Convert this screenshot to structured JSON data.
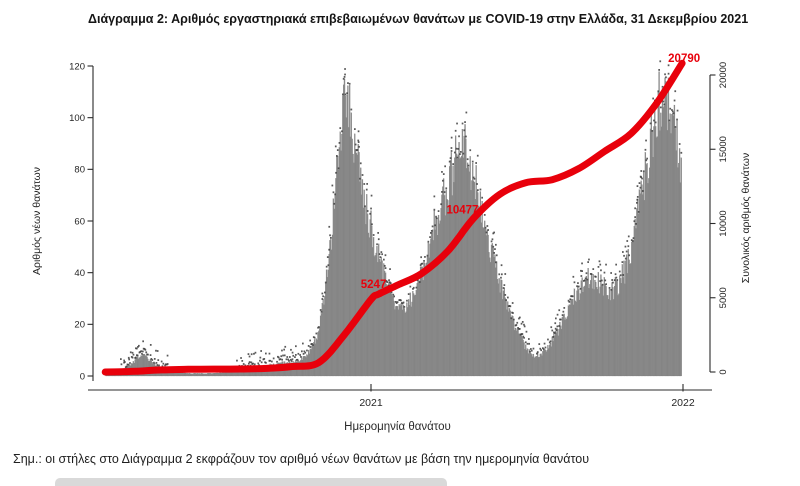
{
  "title": "Διάγραμμα 2: Αριθμός εργαστηριακά επιβεβαιωμένων θανάτων με COVID-19 στην Ελλάδα, 31 Δεκεμβρίου 2021",
  "note": "Σημ.: οι στήλες στο Διάγραμμα 2 εκφράζουν τον αριθμό νέων θανάτων με βάση την ημερομηνία θανάτου",
  "colors": {
    "bar": "#8c8c8c",
    "bar_edge": "#707070",
    "speck": "#3d3d3d",
    "line": "#e8000b",
    "axis": "#2b2b2b",
    "tick_text": "#262626",
    "annotation": "#e8000b"
  },
  "chart_data": {
    "type": "bar",
    "title": "Διάγραμμα 2: Αριθμός εργαστηριακά επιβεβαιωμένων θανάτων με COVID-19 στην Ελλάδα, 31 Δεκεμβρίου 2021",
    "xlabel": "Ημερομηνία θανάτου",
    "ylabel_left": "Αριθμός νέων θανάτων",
    "ylabel_right": "Συνολικός αριθμός θανάτων",
    "x_tick_labels": [
      "2021",
      "2022"
    ],
    "x_tick_dates": [
      "2021-01-01",
      "2022-01-01"
    ],
    "ylim_left": [
      0,
      120
    ],
    "yticks_left": [
      0,
      20,
      40,
      60,
      80,
      100,
      120
    ],
    "ylim_right": [
      0,
      20000
    ],
    "yticks_right": [
      0,
      5000,
      10000,
      15000,
      20000
    ],
    "grid": false,
    "series": [
      {
        "name": "Αριθμός νέων θανάτων",
        "type": "bar",
        "axis": "left",
        "envelope_points": [
          [
            "2020-02-26",
            0.4
          ],
          [
            "2020-03-05",
            0.8
          ],
          [
            "2020-03-12",
            1.5
          ],
          [
            "2020-03-20",
            3
          ],
          [
            "2020-03-28",
            5
          ],
          [
            "2020-04-04",
            7
          ],
          [
            "2020-04-11",
            8
          ],
          [
            "2020-04-18",
            6
          ],
          [
            "2020-04-25",
            4
          ],
          [
            "2020-05-02",
            3
          ],
          [
            "2020-05-10",
            2
          ],
          [
            "2020-05-20",
            1.5
          ],
          [
            "2020-06-01",
            1
          ],
          [
            "2020-06-15",
            1
          ],
          [
            "2020-07-01",
            1
          ],
          [
            "2020-07-15",
            1.5
          ],
          [
            "2020-08-01",
            2
          ],
          [
            "2020-08-15",
            3
          ],
          [
            "2020-09-01",
            4
          ],
          [
            "2020-09-15",
            5
          ],
          [
            "2020-10-01",
            5
          ],
          [
            "2020-10-10",
            6
          ],
          [
            "2020-10-17",
            8
          ],
          [
            "2020-10-24",
            11
          ],
          [
            "2020-10-31",
            16
          ],
          [
            "2020-11-07",
            30
          ],
          [
            "2020-11-14",
            48
          ],
          [
            "2020-11-21",
            72
          ],
          [
            "2020-11-28",
            98
          ],
          [
            "2020-12-03",
            112
          ],
          [
            "2020-12-08",
            103
          ],
          [
            "2020-12-12",
            92
          ],
          [
            "2020-12-19",
            78
          ],
          [
            "2020-12-26",
            64
          ],
          [
            "2021-01-02",
            56
          ],
          [
            "2021-01-09",
            48
          ],
          [
            "2021-01-16",
            40
          ],
          [
            "2021-01-23",
            33
          ],
          [
            "2021-01-30",
            28
          ],
          [
            "2021-02-06",
            26
          ],
          [
            "2021-02-13",
            28
          ],
          [
            "2021-02-20",
            32
          ],
          [
            "2021-02-27",
            38
          ],
          [
            "2021-03-06",
            45
          ],
          [
            "2021-03-13",
            54
          ],
          [
            "2021-03-20",
            62
          ],
          [
            "2021-03-27",
            68
          ],
          [
            "2021-04-03",
            76
          ],
          [
            "2021-04-10",
            83
          ],
          [
            "2021-04-17",
            90
          ],
          [
            "2021-04-24",
            86
          ],
          [
            "2021-05-01",
            78
          ],
          [
            "2021-05-08",
            68
          ],
          [
            "2021-05-15",
            58
          ],
          [
            "2021-05-22",
            48
          ],
          [
            "2021-05-29",
            40
          ],
          [
            "2021-06-05",
            32
          ],
          [
            "2021-06-12",
            25
          ],
          [
            "2021-06-19",
            18
          ],
          [
            "2021-06-26",
            14
          ],
          [
            "2021-07-03",
            10
          ],
          [
            "2021-07-10",
            8
          ],
          [
            "2021-07-17",
            8
          ],
          [
            "2021-07-24",
            10
          ],
          [
            "2021-07-31",
            13
          ],
          [
            "2021-08-07",
            17
          ],
          [
            "2021-08-14",
            22
          ],
          [
            "2021-08-21",
            27
          ],
          [
            "2021-08-28",
            31
          ],
          [
            "2021-09-04",
            34
          ],
          [
            "2021-09-11",
            37
          ],
          [
            "2021-09-18",
            38
          ],
          [
            "2021-09-25",
            36
          ],
          [
            "2021-10-02",
            34
          ],
          [
            "2021-10-09",
            33
          ],
          [
            "2021-10-16",
            35
          ],
          [
            "2021-10-23",
            39
          ],
          [
            "2021-10-30",
            45
          ],
          [
            "2021-11-06",
            56
          ],
          [
            "2021-11-13",
            68
          ],
          [
            "2021-11-20",
            82
          ],
          [
            "2021-11-27",
            95
          ],
          [
            "2021-12-04",
            106
          ],
          [
            "2021-12-11",
            109
          ],
          [
            "2021-12-18",
            101
          ],
          [
            "2021-12-24",
            92
          ],
          [
            "2021-12-31",
            80
          ]
        ]
      },
      {
        "name": "Συνολικός αριθμός θανάτων",
        "type": "line",
        "axis": "right",
        "points": [
          [
            "2020-02-25",
            0
          ],
          [
            "2020-03-15",
            20
          ],
          [
            "2020-04-01",
            50
          ],
          [
            "2020-05-01",
            140
          ],
          [
            "2020-06-01",
            180
          ],
          [
            "2020-07-01",
            192
          ],
          [
            "2020-08-01",
            205
          ],
          [
            "2020-09-01",
            245
          ],
          [
            "2020-10-01",
            370
          ],
          [
            "2020-11-01",
            640
          ],
          [
            "2020-12-01",
            2520
          ],
          [
            "2021-01-01",
            4880
          ],
          [
            "2021-01-10",
            5247
          ],
          [
            "2021-02-01",
            5850
          ],
          [
            "2021-03-01",
            6620
          ],
          [
            "2021-04-01",
            8150
          ],
          [
            "2021-05-01",
            10350
          ],
          [
            "2021-06-01",
            11980
          ],
          [
            "2021-07-01",
            12750
          ],
          [
            "2021-08-01",
            12950
          ],
          [
            "2021-09-01",
            13700
          ],
          [
            "2021-10-01",
            14850
          ],
          [
            "2021-11-01",
            16050
          ],
          [
            "2021-12-01",
            18080
          ],
          [
            "2021-12-31",
            20790
          ]
        ]
      }
    ],
    "annotations": [
      {
        "text": "5247",
        "date": "2021-01-04",
        "value": 5900,
        "under": true,
        "dx": 0
      },
      {
        "text": "10477",
        "date": "2021-04-18",
        "value": 10900,
        "under": true,
        "dx": 0
      },
      {
        "text": "20790",
        "date": "2021-12-24",
        "value": 21100,
        "under": false,
        "dx": 8
      }
    ]
  }
}
